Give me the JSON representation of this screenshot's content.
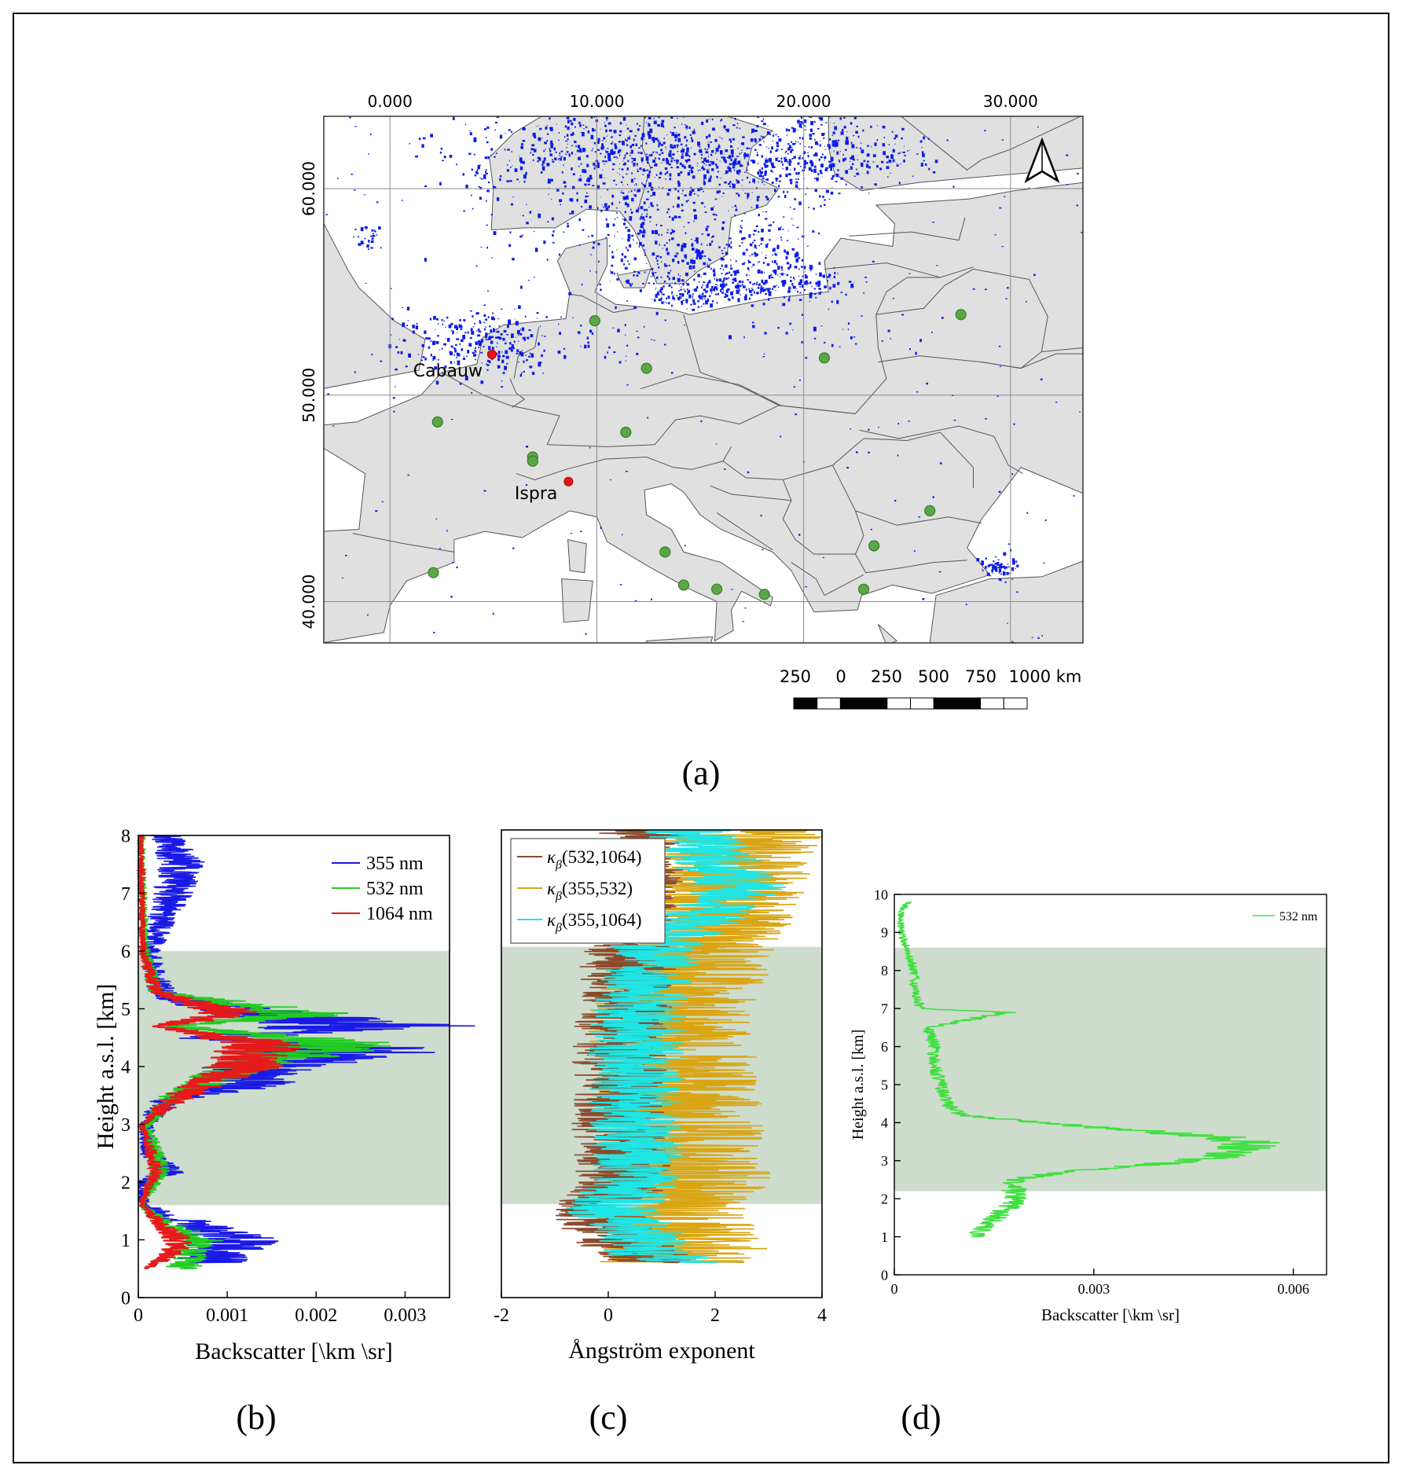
{
  "figure": {
    "panel_labels": {
      "a": "(a)",
      "b": "(b)",
      "c": "(c)",
      "d": "(d)"
    }
  },
  "map": {
    "lon_ticks": [
      "0.000",
      "10.000",
      "20.000",
      "30.000"
    ],
    "lat_ticks": [
      "60.000",
      "50.000",
      "40.000"
    ],
    "lon_values": [
      0,
      10,
      20,
      30
    ],
    "lat_values": [
      60,
      50,
      40
    ],
    "lon_range": [
      -3.2,
      33.5
    ],
    "lat_range": [
      38.0,
      63.5
    ],
    "land_color": "#e0e0e0",
    "water_color": "#ffffff",
    "grid_color": "#8a8a8a",
    "site_labels": [
      "Cabauw",
      "Ispra"
    ],
    "red_sites": [
      {
        "name": "Cabauw",
        "lon": 4.93,
        "lat": 51.97
      },
      {
        "name": "Ispra",
        "lon": 8.63,
        "lat": 45.81
      }
    ],
    "green_sites": [
      {
        "lon": 2.3,
        "lat": 48.7
      },
      {
        "lon": 6.9,
        "lat": 47.0
      },
      {
        "lon": 6.9,
        "lat": 46.8
      },
      {
        "lon": 9.9,
        "lat": 53.6
      },
      {
        "lon": 12.4,
        "lat": 51.3
      },
      {
        "lon": 11.4,
        "lat": 48.2
      },
      {
        "lon": 21.0,
        "lat": 51.8
      },
      {
        "lon": 27.6,
        "lat": 53.9
      },
      {
        "lon": 26.1,
        "lat": 44.4
      },
      {
        "lon": 23.4,
        "lat": 42.7
      },
      {
        "lon": 22.9,
        "lat": 40.6
      },
      {
        "lon": 2.1,
        "lat": 41.4
      },
      {
        "lon": 13.3,
        "lat": 42.4
      },
      {
        "lon": 14.2,
        "lat": 40.8
      },
      {
        "lon": 15.8,
        "lat": 40.6
      },
      {
        "lon": 18.1,
        "lat": 40.35
      }
    ],
    "site_color_red": "#e8141a",
    "site_color_green": "#5aa845",
    "cloud_color": "#0a1de8",
    "north_arrow": "north-arrow-icon",
    "scalebar_labels": [
      "250",
      "0",
      "250",
      "500",
      "750",
      "1000 km"
    ]
  },
  "panel_b": {
    "ylabel": "Height a.s.l. [km]",
    "xlabel": "Backscatter [\\km \\sr]",
    "x_ticks": [
      "0",
      "0.001",
      "0.002",
      "0.003"
    ],
    "x_values": [
      0,
      0.001,
      0.002,
      0.003
    ],
    "y_ticks": [
      "0",
      "1",
      "2",
      "3",
      "4",
      "5",
      "6",
      "7",
      "8"
    ],
    "xlim": [
      0,
      0.0035
    ],
    "ylim": [
      0,
      8
    ],
    "shade": [
      1.6,
      6.0
    ],
    "shade_color": "#cddccd",
    "legend": [
      {
        "name": "355 nm",
        "color": "#1a1ae6"
      },
      {
        "name": "532 nm",
        "color": "#22cc22"
      },
      {
        "name": "1064 nm",
        "color": "#e61a1a"
      }
    ]
  },
  "panel_c": {
    "xlabel": "Ångström exponent",
    "x_ticks": [
      "-2",
      "0",
      "2",
      "4"
    ],
    "x_values": [
      -2,
      0,
      2,
      4
    ],
    "xlim": [
      -2,
      4
    ],
    "ylim": [
      0,
      8
    ],
    "shade": [
      1.6,
      6.0
    ],
    "legend": [
      {
        "base": "κ",
        "sub": "β",
        "args": "(532,1064)",
        "color": "#8b4a2b"
      },
      {
        "base": "κ",
        "sub": "β",
        "args": "(355,532)",
        "color": "#d9a514"
      },
      {
        "base": "κ",
        "sub": "β",
        "args": "(355,1064)",
        "color": "#1ee6e6"
      }
    ]
  },
  "panel_d": {
    "ylabel": "Height a.s.l. [km]",
    "xlabel": "Backscatter [\\km \\sr]",
    "x_ticks": [
      "0",
      "0.003",
      "0.006"
    ],
    "x_values": [
      0,
      0.003,
      0.006
    ],
    "y_ticks": [
      "0",
      "1",
      "2",
      "3",
      "4",
      "5",
      "6",
      "7",
      "8",
      "9",
      "10"
    ],
    "xlim": [
      0,
      0.0065
    ],
    "ylim": [
      0,
      10
    ],
    "shade": [
      2.2,
      8.6
    ],
    "legend": [
      {
        "name": "532 nm",
        "color": "#3ee03e"
      }
    ]
  },
  "chart_data": [
    {
      "type": "line",
      "panel": "b",
      "xlabel": "Backscatter [\\km \\sr]",
      "ylabel": "Height a.s.l. [km]",
      "xlim": [
        0,
        0.0035
      ],
      "ylim": [
        0,
        8
      ],
      "series": [
        {
          "name": "355 nm",
          "height_km": [
            0.6,
            1.0,
            1.4,
            1.6,
            2.0,
            2.2,
            2.5,
            3.0,
            3.4,
            3.7,
            4.0,
            4.3,
            4.5,
            4.7,
            4.9,
            5.2,
            5.5,
            6.0,
            6.5,
            7.0,
            7.5,
            8.0
          ],
          "values": [
            0.0008,
            0.0011,
            0.0004,
            5e-05,
            5e-05,
            0.0004,
            0.0001,
            0.0001,
            0.0003,
            0.0012,
            0.0014,
            0.0025,
            0.0008,
            0.0026,
            0.0015,
            0.0003,
            0.0002,
            0.00015,
            0.00025,
            0.0004,
            0.0005,
            0.0003
          ]
        },
        {
          "name": "532 nm",
          "height_km": [
            0.5,
            0.8,
            1.0,
            1.3,
            1.6,
            2.2,
            3.0,
            3.5,
            4.0,
            4.4,
            4.7,
            4.9,
            5.3,
            6.0,
            7.0,
            8.0
          ],
          "values": [
            0.0005,
            0.0006,
            0.0007,
            0.0003,
            3e-05,
            0.00025,
            0.0001,
            0.0004,
            0.0012,
            0.0023,
            0.0004,
            0.0019,
            0.0002,
            8e-05,
            5e-05,
            3e-05
          ]
        },
        {
          "name": "1064 nm",
          "height_km": [
            0.5,
            0.8,
            1.0,
            1.3,
            1.6,
            2.2,
            3.0,
            3.4,
            3.6,
            4.0,
            4.4,
            4.7,
            4.9,
            5.3,
            6.0,
            7.0,
            8.0
          ],
          "values": [
            0.0001,
            0.0004,
            0.00045,
            0.00025,
            3e-05,
            0.0002,
            5e-05,
            0.0004,
            0.0006,
            0.0012,
            0.0014,
            0.0002,
            0.0011,
            0.0002,
            5e-05,
            4e-05,
            3e-05
          ]
        }
      ]
    },
    {
      "type": "line",
      "panel": "c",
      "xlabel": "Ångström exponent",
      "xlim": [
        -2,
        4
      ],
      "ylim": [
        0,
        8
      ],
      "series": [
        {
          "name": "κβ(532,1064)",
          "height_km": [
            0.6,
            0.8,
            1.0,
            1.2,
            1.5,
            2.0,
            3.0,
            4.0,
            5.0,
            6.0,
            7.0,
            8.0
          ],
          "values": [
            0.9,
            0.5,
            0.2,
            0.0,
            -0.2,
            0.3,
            0.2,
            0.2,
            0.3,
            0.4,
            0.5,
            0.6
          ]
        },
        {
          "name": "κβ(355,532)",
          "height_km": [
            0.6,
            0.8,
            1.0,
            1.2,
            1.5,
            2.0,
            3.0,
            4.0,
            5.0,
            6.0,
            7.0,
            8.0
          ],
          "values": [
            1.2,
            1.4,
            1.3,
            1.2,
            1.0,
            1.5,
            1.4,
            1.2,
            1.2,
            1.6,
            2.2,
            2.5
          ]
        },
        {
          "name": "κβ(355,1064)",
          "height_km": [
            0.6,
            0.8,
            1.0,
            1.2,
            1.5,
            2.0,
            3.0,
            4.0,
            5.0,
            6.0,
            7.0,
            8.0
          ],
          "values": [
            1.2,
            0.8,
            0.6,
            0.5,
            0.0,
            0.6,
            0.5,
            0.5,
            0.6,
            0.9,
            2.5,
            1.5
          ]
        }
      ]
    },
    {
      "type": "line",
      "panel": "d",
      "xlabel": "Backscatter [\\km \\sr]",
      "ylabel": "Height a.s.l. [km]",
      "xlim": [
        0,
        0.0065
      ],
      "ylim": [
        0,
        10
      ],
      "series": [
        {
          "name": "532 nm",
          "height_km": [
            1.0,
            1.3,
            1.6,
            1.9,
            2.2,
            2.5,
            2.7,
            2.9,
            3.1,
            3.3,
            3.45,
            3.6,
            3.8,
            4.0,
            4.2,
            4.5,
            5.0,
            5.5,
            6.0,
            6.5,
            6.9,
            7.0,
            7.5,
            8.0,
            8.5,
            9.0,
            9.5,
            9.8
          ],
          "values": [
            0.0012,
            0.0014,
            0.0016,
            0.0018,
            0.0018,
            0.0018,
            0.0025,
            0.004,
            0.0048,
            0.0052,
            0.0054,
            0.005,
            0.0036,
            0.0022,
            0.001,
            0.0008,
            0.0007,
            0.0006,
            0.0006,
            0.0005,
            0.0017,
            0.0004,
            0.0003,
            0.0003,
            0.0002,
            0.0001,
            0.0001,
            0.0002
          ]
        }
      ]
    }
  ]
}
